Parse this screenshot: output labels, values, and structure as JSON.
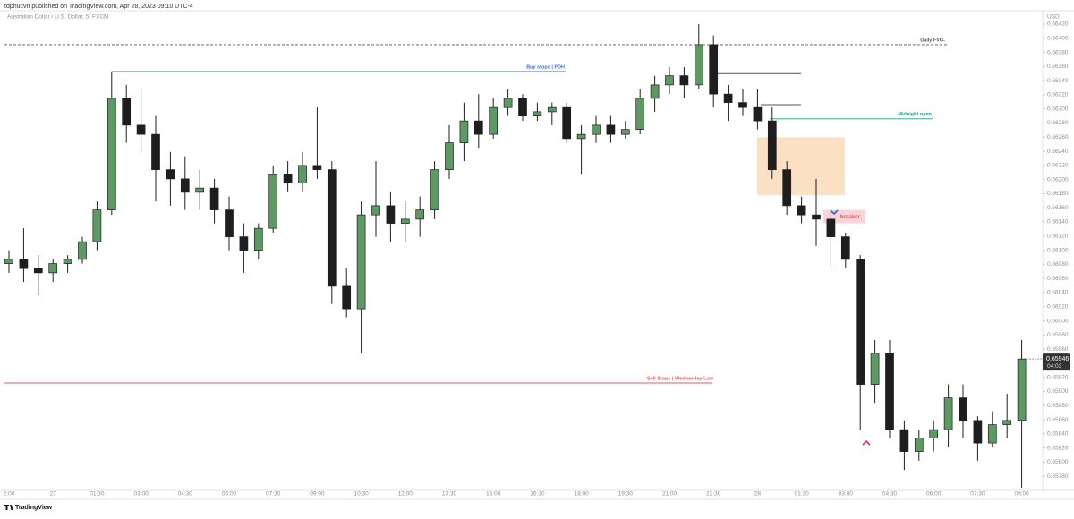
{
  "header": {
    "publisher": "tdphucvn published on TradingView.com, Apr 28, 2023 09:10 UTC-4",
    "footer": "TradingView"
  },
  "chart_data": {
    "type": "candlestick",
    "symbol": "Australian Dollar / U.S. Dollar, 5, FXCM",
    "currency": "USD",
    "up_color": "#5d9a63",
    "down_color": "#1e1e1e",
    "grid": false,
    "categories": [
      "2:00",
      null,
      null,
      "27",
      null,
      null,
      "01:30",
      null,
      null,
      "03:00",
      null,
      null,
      "04:30",
      null,
      null,
      "06:00",
      null,
      null,
      "07:30",
      null,
      null,
      "09:00",
      null,
      null,
      "10:30",
      null,
      null,
      "12:00",
      null,
      null,
      "13:30",
      null,
      null,
      "15:00",
      null,
      null,
      "16:30",
      null,
      null,
      "18:00",
      null,
      null,
      "19:30",
      null,
      null,
      "21:00",
      null,
      null,
      "22:30",
      null,
      null,
      "28",
      null,
      null,
      "01:30",
      null,
      null,
      "03:00",
      null,
      null,
      "04:30",
      null,
      null,
      "06:00",
      null,
      null,
      "07:30",
      null,
      null,
      "09:00"
    ],
    "open": [
      0.66081,
      0.66087,
      0.66074,
      0.66068,
      0.66081,
      0.66087,
      0.66112,
      0.66157,
      0.66315,
      0.66277,
      0.66264,
      0.66214,
      0.66201,
      0.66182,
      0.66188,
      0.66157,
      0.66119,
      0.661,
      0.66131,
      0.66207,
      0.66195,
      0.6622,
      0.66214,
      0.66049,
      0.66017,
      0.6615,
      0.66163,
      0.66138,
      0.66144,
      0.66157,
      0.66214,
      0.66252,
      0.66283,
      0.66264,
      0.66302,
      0.66315,
      0.6629,
      0.66296,
      0.66302,
      0.66258,
      0.66264,
      0.66277,
      0.66264,
      0.66271,
      0.66315,
      0.66334,
      0.66347,
      0.66334,
      0.66391,
      0.66321,
      0.66309,
      0.66302,
      0.66283,
      0.66214,
      0.66163,
      0.6615,
      0.66144,
      0.66119,
      0.66087,
      0.6591,
      0.65954,
      0.65846,
      0.65815,
      0.65834,
      0.65846,
      0.65891,
      0.65859,
      0.65827,
      0.65853,
      0.65859
    ],
    "high": [
      0.661,
      0.66131,
      0.66093,
      0.66087,
      0.66093,
      0.66119,
      0.66169,
      0.66353,
      0.66334,
      0.66328,
      0.6629,
      0.66239,
      0.66233,
      0.66214,
      0.66201,
      0.66176,
      0.66138,
      0.66138,
      0.6622,
      0.66226,
      0.66239,
      0.66302,
      0.66226,
      0.66074,
      0.66169,
      0.66226,
      0.66182,
      0.66169,
      0.66176,
      0.66226,
      0.66277,
      0.66309,
      0.66321,
      0.66315,
      0.66328,
      0.66321,
      0.66309,
      0.66309,
      0.66309,
      0.66277,
      0.6629,
      0.6629,
      0.66283,
      0.66328,
      0.66347,
      0.66359,
      0.66359,
      0.6642,
      0.66404,
      0.66334,
      0.66328,
      0.66328,
      0.66302,
      0.66226,
      0.66176,
      0.66201,
      0.66157,
      0.66125,
      0.66093,
      0.65973,
      0.65973,
      0.65859,
      0.65846,
      0.65859,
      0.6591,
      0.6591,
      0.65865,
      0.65872,
      0.65897,
      0.65973
    ],
    "low": [
      0.66068,
      0.66055,
      0.66036,
      0.66055,
      0.66068,
      0.66081,
      0.661,
      0.6615,
      0.66252,
      0.66239,
      0.66169,
      0.66163,
      0.66157,
      0.66157,
      0.66138,
      0.661,
      0.66068,
      0.66087,
      0.66125,
      0.66182,
      0.66182,
      0.66201,
      0.66024,
      0.66005,
      0.65954,
      0.66119,
      0.66112,
      0.66112,
      0.66119,
      0.66144,
      0.66201,
      0.66226,
      0.66245,
      0.66258,
      0.6629,
      0.66283,
      0.66283,
      0.66277,
      0.66252,
      0.66207,
      0.66252,
      0.66252,
      0.66258,
      0.66264,
      0.66296,
      0.66321,
      0.66315,
      0.66328,
      0.66302,
      0.66283,
      0.6629,
      0.66271,
      0.66201,
      0.6615,
      0.66138,
      0.66106,
      0.66074,
      0.66074,
      0.65846,
      0.65884,
      0.65834,
      0.65789,
      0.65802,
      0.65815,
      0.65821,
      0.65834,
      0.65802,
      0.65821,
      0.65834,
      0.65764
    ],
    "close": [
      0.66087,
      0.66074,
      0.66068,
      0.66081,
      0.66087,
      0.66112,
      0.66157,
      0.66315,
      0.66277,
      0.66264,
      0.66214,
      0.66201,
      0.66182,
      0.66188,
      0.66157,
      0.66119,
      0.661,
      0.66131,
      0.66207,
      0.66195,
      0.6622,
      0.66214,
      0.66049,
      0.66017,
      0.6615,
      0.66163,
      0.66138,
      0.66144,
      0.66157,
      0.66214,
      0.66252,
      0.66283,
      0.66264,
      0.66302,
      0.66315,
      0.6629,
      0.66296,
      0.66302,
      0.66258,
      0.66264,
      0.66277,
      0.66264,
      0.66271,
      0.66315,
      0.66334,
      0.66347,
      0.66334,
      0.66391,
      0.66321,
      0.66309,
      0.66302,
      0.66283,
      0.66214,
      0.66163,
      0.6615,
      0.66144,
      0.66119,
      0.66087,
      0.6591,
      0.65954,
      0.65846,
      0.65815,
      0.65834,
      0.65846,
      0.65891,
      0.65859,
      0.65827,
      0.65853,
      0.65859,
      0.65946
    ],
    "ylim": [
      0.6576,
      0.66439
    ],
    "yticks": [
      {
        "value": 0.6642,
        "label": "0.66420"
      },
      {
        "value": 0.664,
        "label": "0.66400"
      },
      {
        "value": 0.6638,
        "label": "0.66380"
      },
      {
        "value": 0.6636,
        "label": "0.66360"
      },
      {
        "value": 0.6634,
        "label": "0.66340"
      },
      {
        "value": 0.6632,
        "label": "0.66320"
      },
      {
        "value": 0.663,
        "label": "0.66300"
      },
      {
        "value": 0.6628,
        "label": "0.66280"
      },
      {
        "value": 0.6626,
        "label": "0.66260"
      },
      {
        "value": 0.6624,
        "label": "0.66240"
      },
      {
        "value": 0.6622,
        "label": "0.66220"
      },
      {
        "value": 0.662,
        "label": "0.66200"
      },
      {
        "value": 0.6618,
        "label": "0.66180"
      },
      {
        "value": 0.6616,
        "label": "0.66160"
      },
      {
        "value": 0.6614,
        "label": "0.66140"
      },
      {
        "value": 0.6612,
        "label": "0.66120"
      },
      {
        "value": 0.661,
        "label": "0.66100"
      },
      {
        "value": 0.6608,
        "label": "0.66080"
      },
      {
        "value": 0.6606,
        "label": "0.66060"
      },
      {
        "value": 0.6604,
        "label": "0.66040"
      },
      {
        "value": 0.6602,
        "label": "0.66020"
      },
      {
        "value": 0.66,
        "label": "0.66000"
      },
      {
        "value": 0.6598,
        "label": "0.65980"
      },
      {
        "value": 0.6596,
        "label": "0.65960"
      },
      {
        "value": 0.6592,
        "label": "0.65920"
      },
      {
        "value": 0.659,
        "label": "0.65900"
      },
      {
        "value": 0.6588,
        "label": "0.65880"
      },
      {
        "value": 0.6586,
        "label": "0.65860"
      },
      {
        "value": 0.6584,
        "label": "0.65840"
      },
      {
        "value": 0.6582,
        "label": "0.65820"
      },
      {
        "value": 0.658,
        "label": "0.65800"
      },
      {
        "value": 0.6578,
        "label": "0.65780"
      }
    ],
    "last_price": 0.65946,
    "countdown": "04:03",
    "levels": [
      {
        "label": "Daily FVG-",
        "value": 0.66391,
        "color": "#555555",
        "style": "dashed"
      },
      {
        "label": "Buy stops | PDH",
        "value": 0.66353,
        "color": "#3d6fd6",
        "style": "solid"
      },
      {
        "label": "Midnight open",
        "value": 0.66286,
        "color": "#1f9e8a",
        "style": "solid"
      },
      {
        "label": "Sell Stops | Wednesday Low",
        "value": 0.65912,
        "color": "#e05a6a",
        "style": "solid"
      },
      {
        "value": 0.6635,
        "color": "#555555",
        "style": "solid"
      },
      {
        "value": 0.66306,
        "color": "#555555",
        "style": "solid"
      }
    ],
    "zones": [
      {
        "top": 0.6626,
        "bottom": 0.66178,
        "color": "#fbe0c3"
      },
      {
        "label": "breaker-",
        "top": 0.66157,
        "bottom": 0.66138,
        "color": "#f9d3d8",
        "text_color": "#d9304a"
      }
    ]
  }
}
